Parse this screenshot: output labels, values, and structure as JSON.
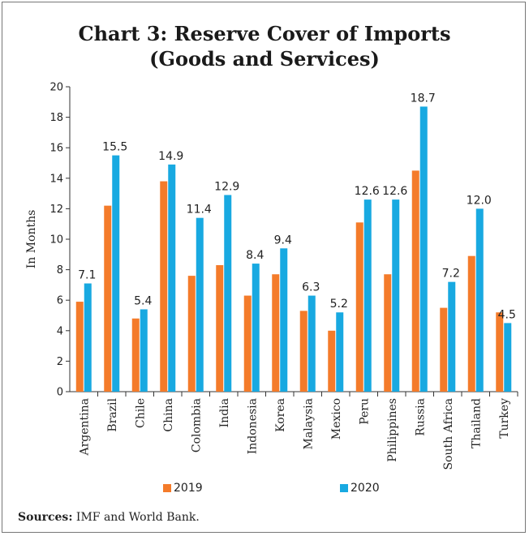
{
  "chart_data": {
    "type": "bar",
    "title_line1": "Chart 3: Reserve Cover of Imports",
    "title_line2": "(Goods and Services)",
    "ylabel": "In Months",
    "xlabel": "",
    "ylim": [
      0,
      20
    ],
    "yticks": [
      0,
      2,
      4,
      6,
      8,
      10,
      12,
      14,
      16,
      18,
      20
    ],
    "categories": [
      "Argentina",
      "Brazil",
      "Chile",
      "China",
      "Colombia",
      "India",
      "Indonesia",
      "Korea",
      "Malaysia",
      "Mexico",
      "Peru",
      "Philippines",
      "Russia",
      "South Africa",
      "Thailand",
      "Turkey"
    ],
    "series": [
      {
        "name": "2019",
        "color": "#f47b2a",
        "values": [
          5.9,
          12.2,
          4.8,
          13.8,
          7.6,
          8.3,
          6.3,
          7.7,
          5.3,
          4.0,
          11.1,
          7.7,
          14.5,
          5.5,
          8.9,
          5.2
        ]
      },
      {
        "name": "2020",
        "color": "#18a9e1",
        "values": [
          7.1,
          15.5,
          5.4,
          14.9,
          11.4,
          12.9,
          8.4,
          9.4,
          6.3,
          5.2,
          12.6,
          12.6,
          18.7,
          7.2,
          12.0,
          4.5
        ]
      }
    ],
    "data_labels_2020": [
      "7.1",
      "15.5",
      "5.4",
      "14.9",
      "11.4",
      "12.9",
      "8.4",
      "9.4",
      "6.3",
      "5.2",
      "12.6",
      "12.6",
      "18.7",
      "7.2",
      "12.0",
      "4.5"
    ],
    "grid": false,
    "legend_position": "bottom"
  },
  "source": {
    "label": "Sources:",
    "text": " IMF and World Bank."
  }
}
